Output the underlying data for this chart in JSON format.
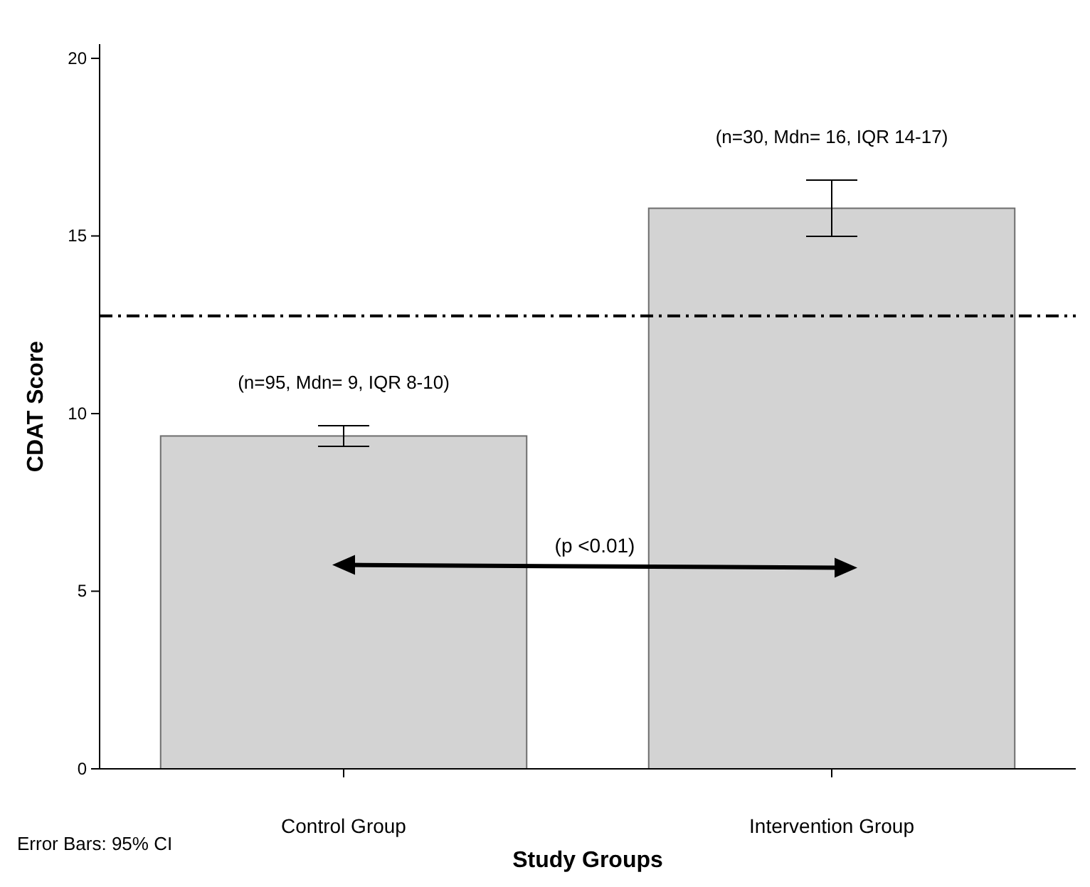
{
  "chart_data": {
    "type": "bar",
    "xlabel": "Study Groups",
    "ylabel": "CDAT Score",
    "categories": [
      "Control Group",
      "Intervention Group"
    ],
    "values": [
      9.37,
      15.78
    ],
    "errors": [
      0.29,
      0.79
    ],
    "color": "#d3d3d3",
    "ylim": [
      0,
      20.4
    ],
    "yticks": [
      0,
      5,
      10,
      15,
      20
    ],
    "grid": false,
    "ref_lines": [
      {
        "axis": "y",
        "value": 12.75,
        "line_style": "dashdot",
        "color": "#000000"
      }
    ],
    "annotations": [
      {
        "text": "(n=95, Mdn= 9, IQR 8-10)",
        "x": "Control Group",
        "y": 9.66
      },
      {
        "text": "(n=30, Mdn= 16, IQR 14-17)",
        "x": "Intervention Group",
        "y": 16.57
      },
      "(p <0.01)",
      "Error Bars: 95% CI"
    ]
  }
}
